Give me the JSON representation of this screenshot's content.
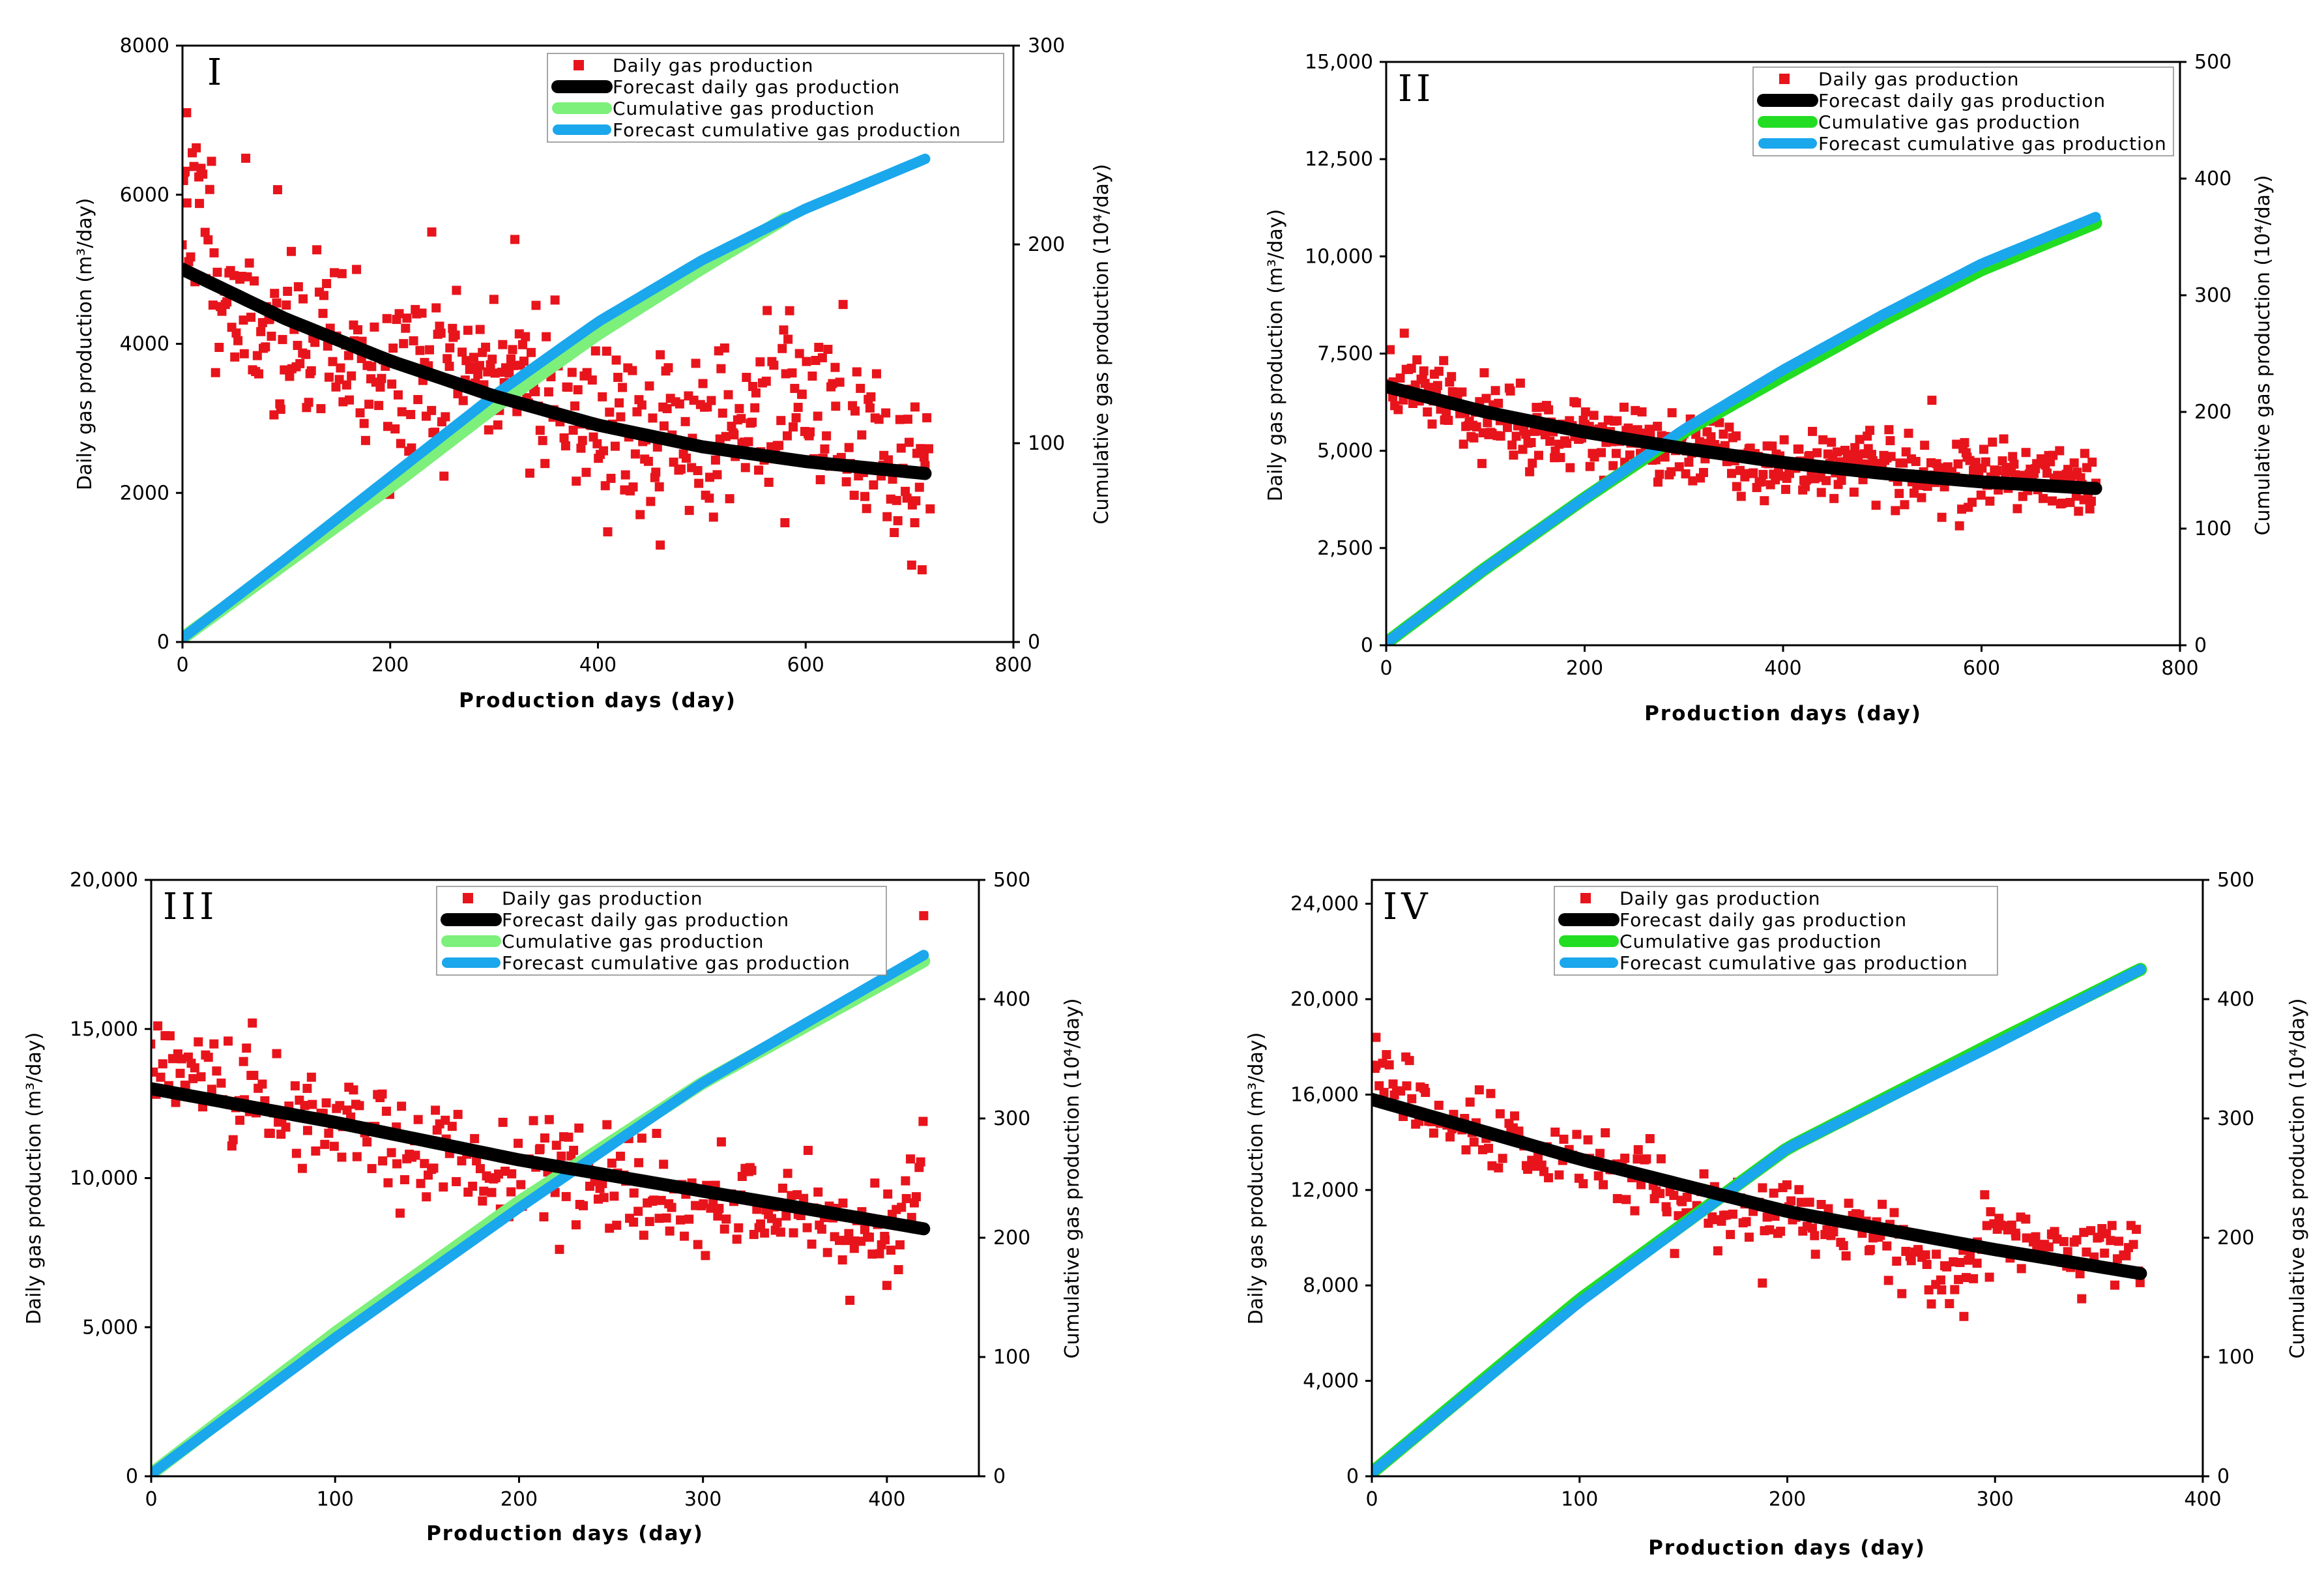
{
  "chart_data": [
    {
      "type": "scatter",
      "panel_label": "I",
      "xlabel": "Production days (day)",
      "ylabel_left": "Daily gas production (m³/day)",
      "ylabel_right": "Cumulative gas production (10⁴/day)",
      "xlim": [
        0,
        800
      ],
      "ylim_left": [
        0,
        8000
      ],
      "ylim_right": [
        0,
        300
      ],
      "xticks": [
        0,
        200,
        400,
        600,
        800
      ],
      "xtick_labels": [
        "0",
        "200",
        "400",
        "600",
        "800"
      ],
      "yticks_left": [
        0,
        2000,
        4000,
        6000,
        8000
      ],
      "ytick_labels_left": [
        "0",
        "2000",
        "4000",
        "6000",
        "8000"
      ],
      "yticks_right": [
        0,
        100,
        200,
        300
      ],
      "ytick_labels_right": [
        "0",
        "100",
        "200",
        "300"
      ],
      "legend": [
        "Daily gas production",
        "Forecast daily gas production",
        "Cumulative gas production",
        "Forecast cumulative gas production"
      ],
      "colors": {
        "daily": "#e8141c",
        "forecast_daily": "#000000",
        "cumulative": "#7cf07a",
        "forecast_cumulative": "#1aa7ec"
      },
      "daily_trend": [
        [
          0,
          5900
        ],
        [
          10,
          6000
        ],
        [
          50,
          4400
        ],
        [
          100,
          4200
        ],
        [
          150,
          3800
        ],
        [
          200,
          3500
        ],
        [
          250,
          3600
        ],
        [
          300,
          3700
        ],
        [
          350,
          3500
        ],
        [
          400,
          2900
        ],
        [
          450,
          2700
        ],
        [
          500,
          2800
        ],
        [
          550,
          3100
        ],
        [
          600,
          3200
        ],
        [
          650,
          2700
        ],
        [
          700,
          2400
        ],
        [
          720,
          2300
        ]
      ],
      "daily_spread": 600,
      "daily_count": 470,
      "daily_x_range": [
        0,
        720
      ],
      "daily_highlights": [
        [
          2,
          6300
        ],
        [
          4,
          7100
        ],
        [
          240,
          5500
        ],
        [
          320,
          5400
        ],
        [
          460,
          1300
        ],
        [
          580,
          1600
        ],
        [
          705,
          1600
        ]
      ],
      "forecast_daily": [
        [
          0,
          5000
        ],
        [
          100,
          4330
        ],
        [
          200,
          3770
        ],
        [
          300,
          3300
        ],
        [
          400,
          2910
        ],
        [
          500,
          2620
        ],
        [
          600,
          2420
        ],
        [
          715,
          2260
        ]
      ],
      "cumulative": [
        [
          0,
          2
        ],
        [
          100,
          40
        ],
        [
          200,
          78
        ],
        [
          300,
          118
        ],
        [
          400,
          155
        ],
        [
          500,
          188
        ],
        [
          580,
          213
        ]
      ],
      "forecast_cumulative": [
        [
          0,
          2
        ],
        [
          100,
          42
        ],
        [
          200,
          83
        ],
        [
          300,
          124
        ],
        [
          400,
          161
        ],
        [
          500,
          192
        ],
        [
          600,
          218
        ],
        [
          715,
          243
        ]
      ]
    },
    {
      "type": "scatter",
      "panel_label": "II",
      "xlabel": "Production days (day)",
      "ylabel_left": "Daily gas production (m³/day)",
      "ylabel_right": "Cumulative gas production (10⁴/day)",
      "xlim": [
        0,
        800
      ],
      "ylim_left": [
        0,
        15000
      ],
      "ylim_right": [
        0,
        500
      ],
      "xticks": [
        0,
        200,
        400,
        600,
        800
      ],
      "xtick_labels": [
        "0",
        "200",
        "400",
        "600",
        "800"
      ],
      "yticks_left": [
        0,
        2500,
        5000,
        7500,
        10000,
        12500,
        15000
      ],
      "ytick_labels_left": [
        "0",
        "2,500",
        "5,000",
        "7,500",
        "10,000",
        "12,500",
        "15,000"
      ],
      "yticks_right": [
        0,
        100,
        200,
        300,
        400,
        500
      ],
      "ytick_labels_right": [
        "0",
        "100",
        "200",
        "300",
        "400",
        "500"
      ],
      "legend": [
        "Daily gas production",
        "Forecast daily gas production",
        "Cumulative gas production",
        "Forecast cumulative gas production"
      ],
      "colors": {
        "daily": "#e8141c",
        "forecast_daily": "#000000",
        "cumulative": "#22dd22",
        "forecast_cumulative": "#1aa7ec"
      },
      "daily_trend": [
        [
          0,
          6800
        ],
        [
          50,
          6500
        ],
        [
          100,
          5800
        ],
        [
          200,
          5400
        ],
        [
          300,
          5100
        ],
        [
          400,
          4600
        ],
        [
          500,
          4500
        ],
        [
          600,
          4400
        ],
        [
          715,
          4300
        ]
      ],
      "daily_spread": 450,
      "daily_count": 470,
      "daily_x_range": [
        0,
        715
      ],
      "daily_highlights": [
        [
          4,
          7600
        ],
        [
          550,
          6300
        ],
        [
          580,
          3500
        ]
      ],
      "forecast_daily": [
        [
          0,
          6650
        ],
        [
          100,
          6000
        ],
        [
          200,
          5480
        ],
        [
          300,
          5060
        ],
        [
          400,
          4700
        ],
        [
          500,
          4420
        ],
        [
          600,
          4200
        ],
        [
          715,
          4030
        ]
      ],
      "cumulative": [
        [
          0,
          2
        ],
        [
          100,
          66
        ],
        [
          200,
          126
        ],
        [
          300,
          183
        ],
        [
          400,
          231
        ],
        [
          500,
          278
        ],
        [
          600,
          322
        ],
        [
          715,
          362
        ]
      ],
      "forecast_cumulative": [
        [
          0,
          2
        ],
        [
          100,
          66
        ],
        [
          200,
          126
        ],
        [
          300,
          185
        ],
        [
          400,
          236
        ],
        [
          500,
          283
        ],
        [
          600,
          327
        ],
        [
          715,
          367
        ]
      ]
    },
    {
      "type": "scatter",
      "panel_label": "III",
      "xlabel": "Production days (day)",
      "ylabel_left": "Daily gas production (m³/day)",
      "ylabel_right": "Cumulative gas production (10⁴/day)",
      "xlim": [
        0,
        450
      ],
      "ylim_left": [
        0,
        20000
      ],
      "ylim_right": [
        0,
        500
      ],
      "xticks": [
        0,
        100,
        200,
        300,
        400
      ],
      "xtick_labels": [
        "0",
        "100",
        "200",
        "300",
        "400"
      ],
      "yticks_left": [
        0,
        5000,
        10000,
        15000,
        20000
      ],
      "ytick_labels_left": [
        "0",
        "5,000",
        "10,000",
        "15,000",
        "20,000"
      ],
      "yticks_right": [
        0,
        100,
        200,
        300,
        400,
        500
      ],
      "ytick_labels_right": [
        "0",
        "100",
        "200",
        "300",
        "400",
        "500"
      ],
      "legend": [
        "Daily gas production",
        "Forecast daily gas production",
        "Cumulative gas production",
        "Forecast cumulative gas production"
      ],
      "colors": {
        "daily": "#e8141c",
        "forecast_daily": "#000000",
        "cumulative": "#7cf07a",
        "forecast_cumulative": "#1aa7ec"
      },
      "daily_trend": [
        [
          0,
          13500
        ],
        [
          50,
          13000
        ],
        [
          100,
          11800
        ],
        [
          150,
          11000
        ],
        [
          200,
          10200
        ],
        [
          250,
          9900
        ],
        [
          300,
          9200
        ],
        [
          350,
          8800
        ],
        [
          400,
          8000
        ],
        [
          415,
          9500
        ],
        [
          420,
          11000
        ]
      ],
      "daily_spread": 900,
      "daily_count": 330,
      "daily_x_range": [
        0,
        420
      ],
      "daily_highlights": [
        [
          420,
          18800
        ],
        [
          55,
          15200
        ],
        [
          400,
          6400
        ]
      ],
      "forecast_daily": [
        [
          0,
          13000
        ],
        [
          100,
          11870
        ],
        [
          200,
          10610
        ],
        [
          300,
          9560
        ],
        [
          400,
          8510
        ],
        [
          420,
          8300
        ]
      ],
      "cumulative": [
        [
          0,
          2
        ],
        [
          100,
          120
        ],
        [
          200,
          230
        ],
        [
          300,
          330
        ],
        [
          420,
          432
        ]
      ],
      "forecast_cumulative": [
        [
          0,
          2
        ],
        [
          100,
          116
        ],
        [
          200,
          225
        ],
        [
          300,
          330
        ],
        [
          420,
          437
        ]
      ]
    },
    {
      "type": "scatter",
      "panel_label": "IV",
      "xlabel": "Production days (day)",
      "ylabel_left": "Daily gas production (m³/day)",
      "ylabel_right": "Cumulative gas production (10⁴/day)",
      "xlim": [
        0,
        400
      ],
      "ylim_left": [
        0,
        25000
      ],
      "ylim_right": [
        0,
        500
      ],
      "xticks": [
        0,
        100,
        200,
        300,
        400
      ],
      "xtick_labels": [
        "0",
        "100",
        "200",
        "300",
        "400"
      ],
      "yticks_left": [
        0,
        4000,
        8000,
        12000,
        16000,
        20000,
        24000
      ],
      "ytick_labels_left": [
        "0",
        "4,000",
        "8,000",
        "12,000",
        "16,000",
        "20,000",
        "24,000"
      ],
      "yticks_right": [
        0,
        100,
        200,
        300,
        400,
        500
      ],
      "ytick_labels_right": [
        "0",
        "100",
        "200",
        "300",
        "400",
        "500"
      ],
      "legend": [
        "Daily gas production",
        "Forecast daily gas production",
        "Cumulative gas production",
        "Forecast cumulative gas production"
      ],
      "colors": {
        "daily": "#e8141c",
        "forecast_daily": "#000000",
        "cumulative": "#22dd22",
        "forecast_cumulative": "#1aa7ec"
      },
      "daily_trend": [
        [
          0,
          17500
        ],
        [
          20,
          15500
        ],
        [
          50,
          14500
        ],
        [
          100,
          13500
        ],
        [
          150,
          11500
        ],
        [
          200,
          11000
        ],
        [
          250,
          10000
        ],
        [
          280,
          8500
        ],
        [
          300,
          10000
        ],
        [
          330,
          9500
        ],
        [
          370,
          9500
        ]
      ],
      "daily_spread": 700,
      "daily_count": 300,
      "daily_x_range": [
        0,
        370
      ],
      "daily_highlights": [
        [
          2,
          18400
        ],
        [
          188,
          8100
        ],
        [
          285,
          6700
        ],
        [
          295,
          11800
        ]
      ],
      "forecast_daily": [
        [
          0,
          15800
        ],
        [
          100,
          13300
        ],
        [
          200,
          11100
        ],
        [
          300,
          9500
        ],
        [
          370,
          8500
        ]
      ],
      "cumulative": [
        [
          0,
          3
        ],
        [
          100,
          148
        ],
        [
          200,
          275
        ],
        [
          300,
          364
        ],
        [
          370,
          425
        ]
      ],
      "forecast_cumulative": [
        [
          0,
          3
        ],
        [
          100,
          146
        ],
        [
          200,
          275
        ],
        [
          300,
          362
        ],
        [
          370,
          425
        ]
      ]
    }
  ]
}
